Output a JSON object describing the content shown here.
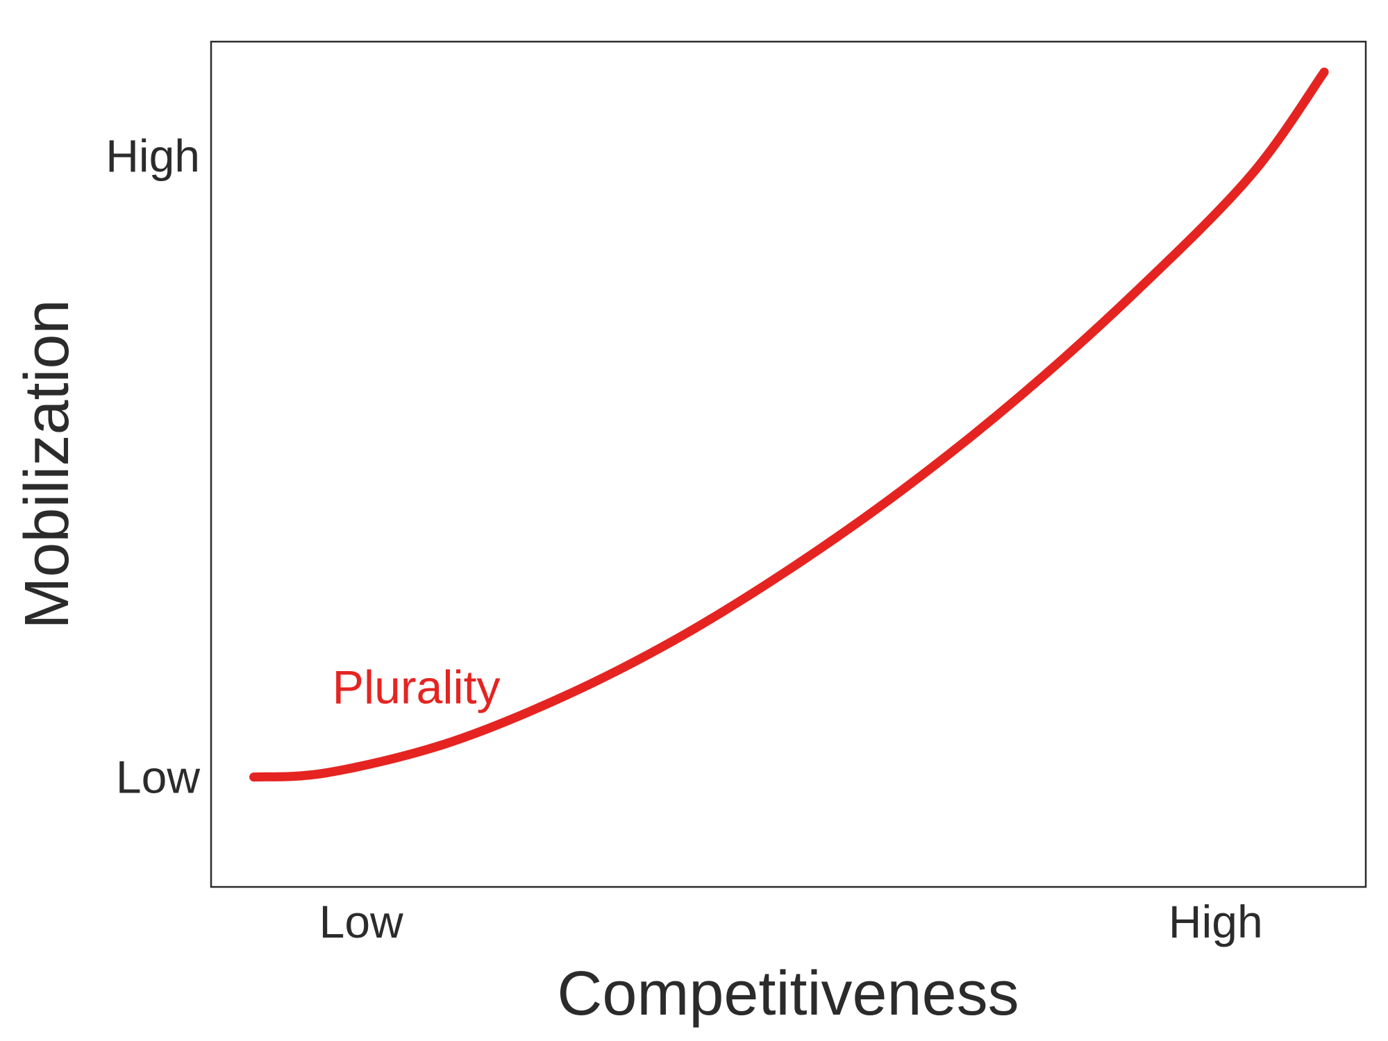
{
  "chart_data": {
    "type": "line",
    "title": "",
    "xlabel": "Competitiveness",
    "ylabel": "Mobilization",
    "xlim": [
      0,
      1
    ],
    "ylim": [
      0,
      1
    ],
    "grid": false,
    "legend": "none",
    "x_ticks": [
      {
        "value": 0.13,
        "label": "Low"
      },
      {
        "value": 0.87,
        "label": "High"
      }
    ],
    "y_ticks": [
      {
        "value": 0.13,
        "label": "Low"
      },
      {
        "value": 0.865,
        "label": "High"
      }
    ],
    "series": [
      {
        "name": "Plurality",
        "color": "#e52421",
        "x": [
          0.037,
          0.1,
          0.2,
          0.3,
          0.4,
          0.5,
          0.6,
          0.7,
          0.8,
          0.9,
          0.964
        ],
        "y": [
          0.13,
          0.135,
          0.168,
          0.222,
          0.291,
          0.375,
          0.471,
          0.58,
          0.703,
          0.841,
          0.964
        ]
      }
    ],
    "annotations": [
      {
        "text": "Plurality",
        "x": 0.105,
        "y": 0.237,
        "color": "#e52421"
      }
    ]
  }
}
